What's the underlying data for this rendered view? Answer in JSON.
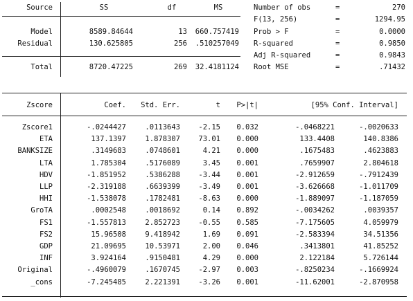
{
  "anova": {
    "headers": {
      "source": "Source",
      "ss": "SS",
      "df": "df",
      "ms": "MS"
    },
    "rows": [
      {
        "source": "Model",
        "ss": "8589.84644",
        "df": "13",
        "ms": "660.757419"
      },
      {
        "source": "Residual",
        "ss": "130.625805",
        "df": "256",
        "ms": ".510257049"
      }
    ],
    "total": {
      "source": "Total",
      "ss": "8720.47225",
      "df": "269",
      "ms": "32.4181124"
    }
  },
  "stats": [
    {
      "label": "Number of obs",
      "eq": "=",
      "value": "270"
    },
    {
      "label": "F(13, 256)",
      "eq": "=",
      "value": "1294.95"
    },
    {
      "label": "Prob > F",
      "eq": "=",
      "value": "0.0000"
    },
    {
      "label": "R-squared",
      "eq": "=",
      "value": "0.9850"
    },
    {
      "label": "Adj R-squared",
      "eq": "=",
      "value": "0.9843"
    },
    {
      "label": "Root MSE",
      "eq": "=",
      "value": ".71432"
    }
  ],
  "coef": {
    "headers": {
      "var": "Zscore",
      "coef": "Coef.",
      "se": "Std. Err.",
      "t": "t",
      "p": "P>|t|",
      "ci": "[95% Conf. Interval]"
    },
    "rows": [
      {
        "var": "Zscore1",
        "coef": "-.0244427",
        "se": ".0113643",
        "t": "-2.15",
        "p": "0.032",
        "lo": "-.0468221",
        "hi": "-.0020633"
      },
      {
        "var": "ETA",
        "coef": "137.1397",
        "se": "1.878307",
        "t": "73.01",
        "p": "0.000",
        "lo": "133.4408",
        "hi": "140.8386"
      },
      {
        "var": "BANKSIZE",
        "coef": ".3149683",
        "se": ".0748601",
        "t": "4.21",
        "p": "0.000",
        "lo": ".1675483",
        "hi": ".4623883"
      },
      {
        "var": "LTA",
        "coef": "1.785304",
        "se": ".5176089",
        "t": "3.45",
        "p": "0.001",
        "lo": ".7659907",
        "hi": "2.804618"
      },
      {
        "var": "HDV",
        "coef": "-1.851952",
        "se": ".5386288",
        "t": "-3.44",
        "p": "0.001",
        "lo": "-2.912659",
        "hi": "-.7912439"
      },
      {
        "var": "LLP",
        "coef": "-2.319188",
        "se": ".6639399",
        "t": "-3.49",
        "p": "0.001",
        "lo": "-3.626668",
        "hi": "-1.011709"
      },
      {
        "var": "HHI",
        "coef": "-1.538078",
        "se": ".1782481",
        "t": "-8.63",
        "p": "0.000",
        "lo": "-1.889097",
        "hi": "-1.187059"
      },
      {
        "var": "GroTA",
        "coef": ".0002548",
        "se": ".0018692",
        "t": "0.14",
        "p": "0.892",
        "lo": "-.0034262",
        "hi": ".0039357"
      },
      {
        "var": "FS1",
        "coef": "-1.557813",
        "se": "2.852723",
        "t": "-0.55",
        "p": "0.585",
        "lo": "-7.175605",
        "hi": "4.059979"
      },
      {
        "var": "FS2",
        "coef": "15.96508",
        "se": "9.418942",
        "t": "1.69",
        "p": "0.091",
        "lo": "-2.583394",
        "hi": "34.51356"
      },
      {
        "var": "GDP",
        "coef": "21.09695",
        "se": "10.53971",
        "t": "2.00",
        "p": "0.046",
        "lo": ".3413801",
        "hi": "41.85252"
      },
      {
        "var": "INF",
        "coef": "3.924164",
        "se": ".9150481",
        "t": "4.29",
        "p": "0.000",
        "lo": "2.122184",
        "hi": "5.726144"
      },
      {
        "var": "Original",
        "coef": "-.4960079",
        "se": ".1670745",
        "t": "-2.97",
        "p": "0.003",
        "lo": "-.8250234",
        "hi": "-.1669924"
      },
      {
        "var": "_cons",
        "coef": "-7.245485",
        "se": "2.221391",
        "t": "-3.26",
        "p": "0.001",
        "lo": "-11.62001",
        "hi": "-2.870958"
      }
    ]
  }
}
